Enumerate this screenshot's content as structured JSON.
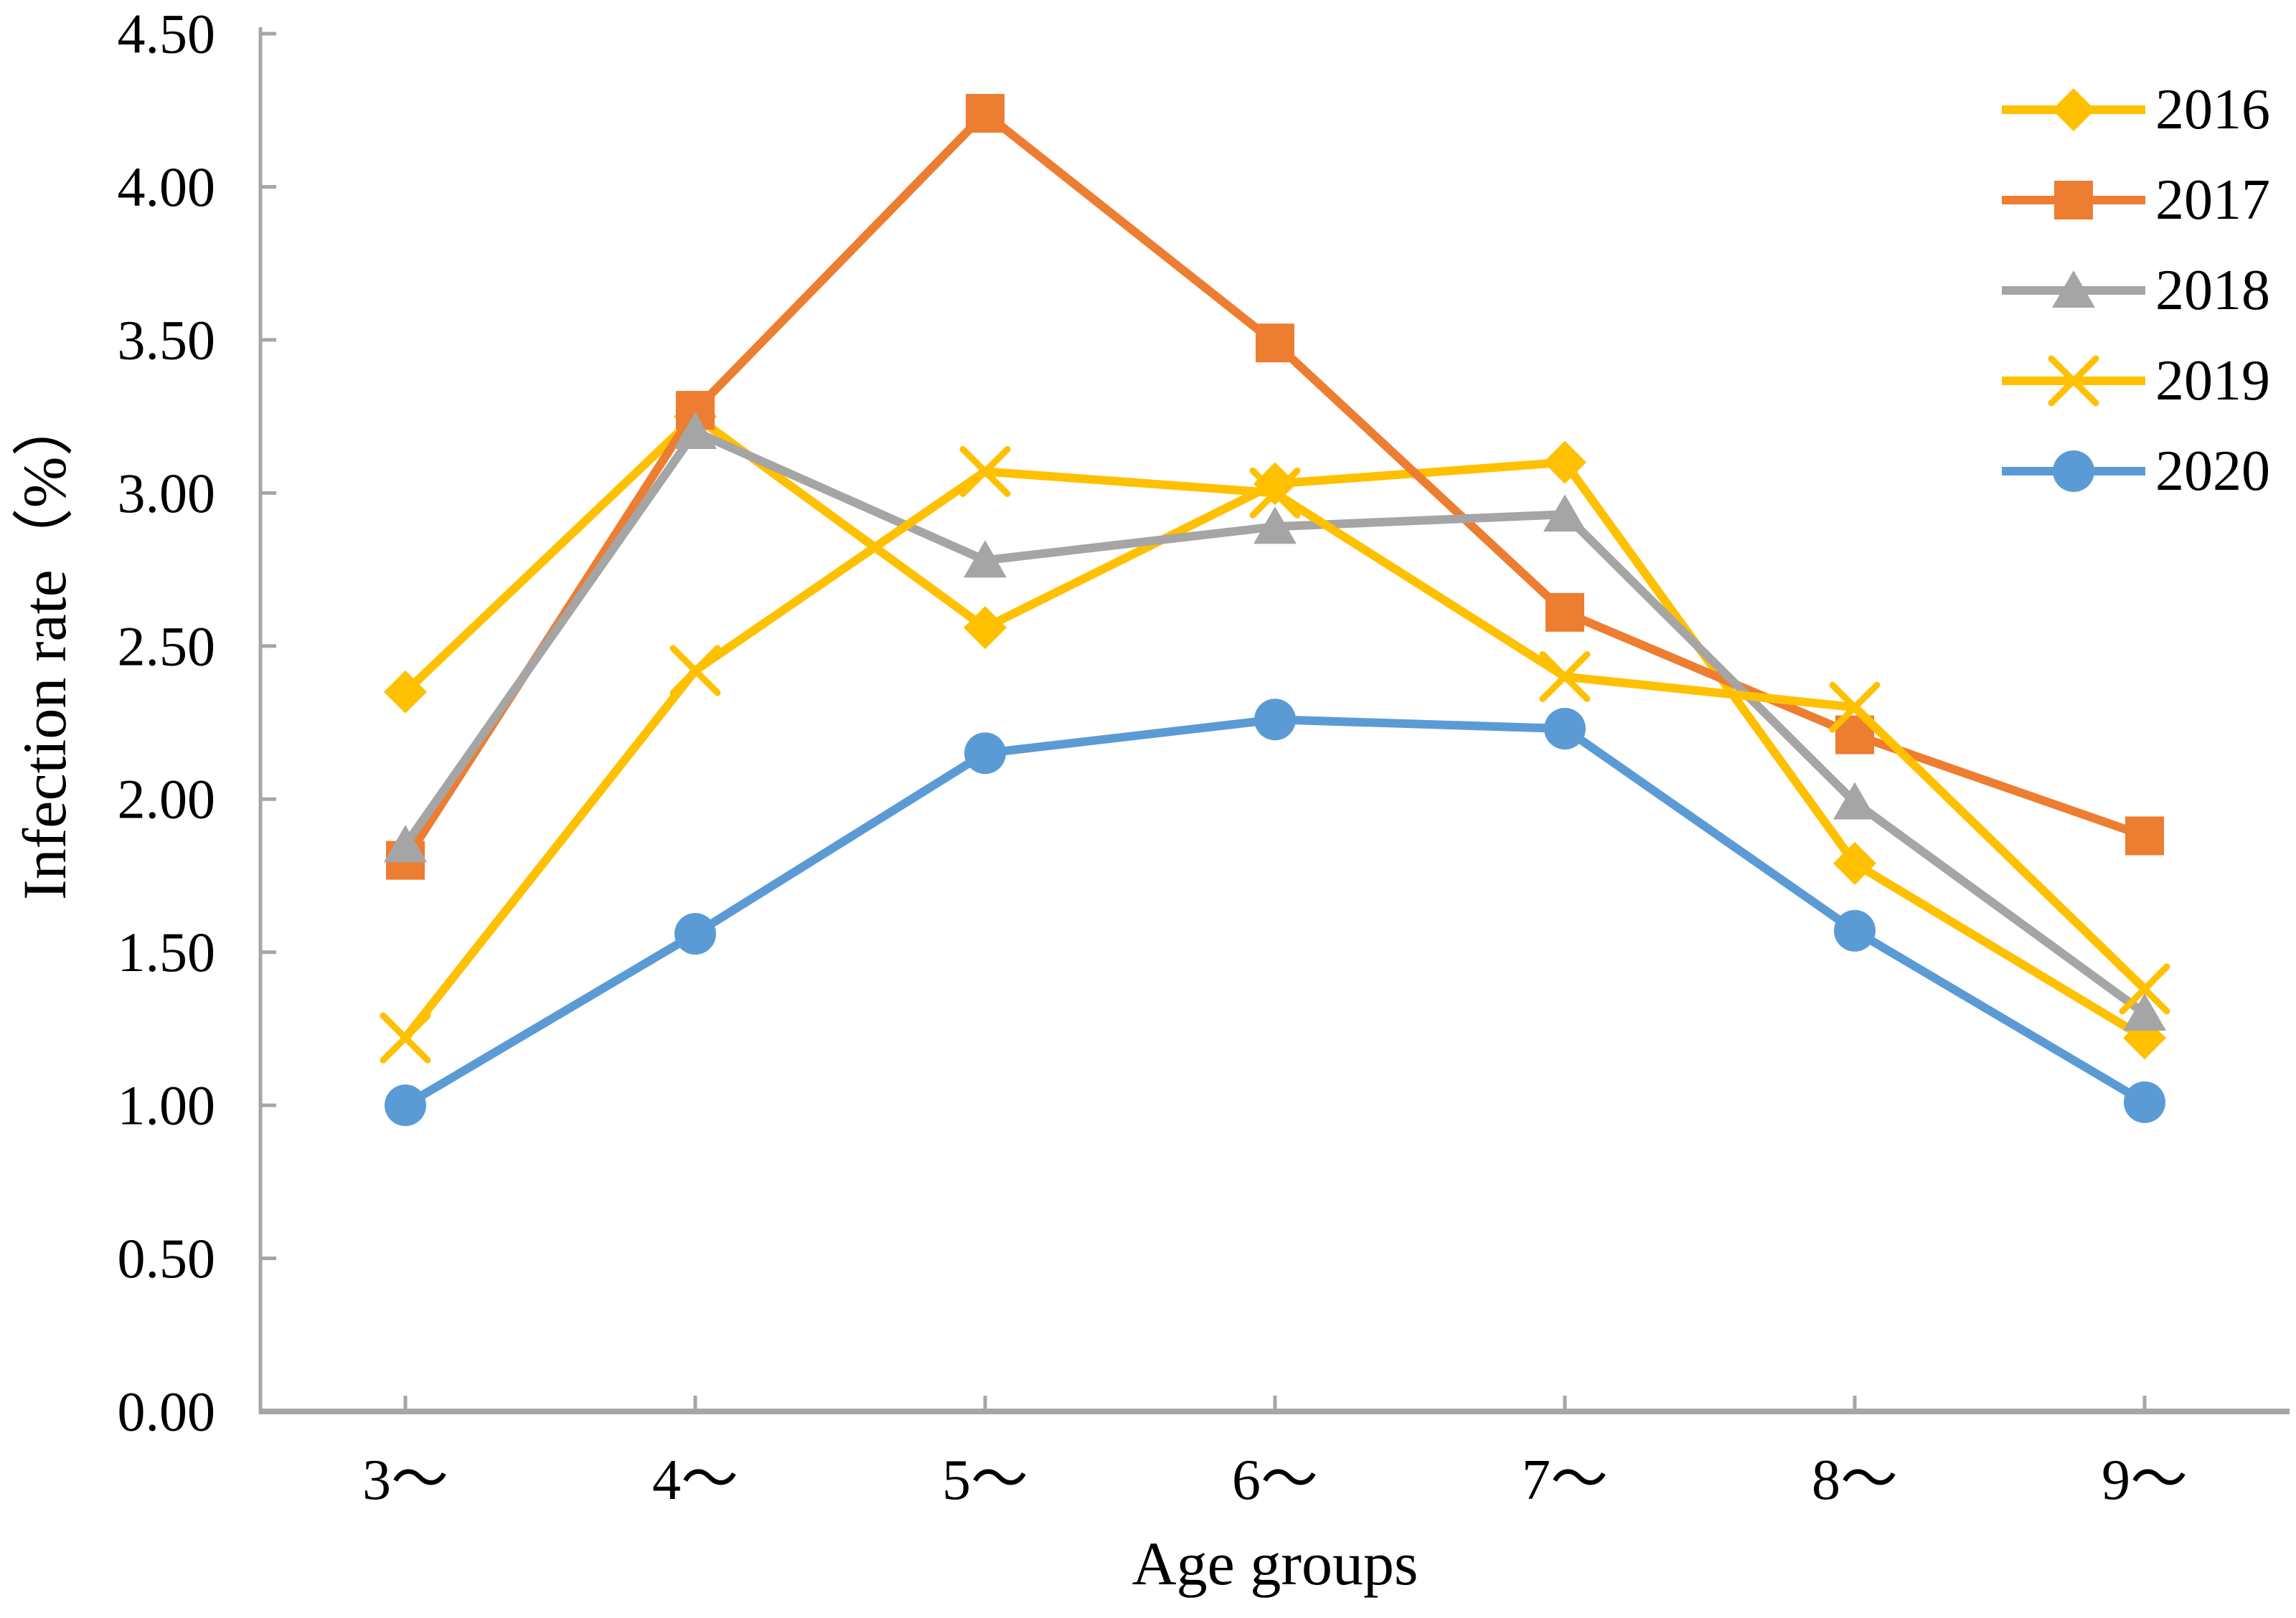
{
  "chart_data": {
    "type": "line",
    "title": "",
    "xlabel": "Age groups",
    "ylabel": "Infection rate（%）",
    "categories": [
      "3～",
      "4～",
      "5～",
      "6～",
      "7～",
      "8～",
      "9～"
    ],
    "y_axis": {
      "min": 0,
      "max": 4.5,
      "step": 0.5,
      "tick_labels": [
        "0.00",
        "0.50",
        "1.00",
        "1.50",
        "2.00",
        "2.50",
        "3.00",
        "3.50",
        "4.00",
        "4.50"
      ]
    },
    "grid": false,
    "legend_position": "top-right",
    "axis_color": "#A6A6A6",
    "text_color": "#000000",
    "series": [
      {
        "name": "2016",
        "color": "#FFC000",
        "marker": "diamond",
        "values": [
          2.35,
          3.25,
          2.56,
          3.03,
          3.1,
          1.79,
          1.22
        ]
      },
      {
        "name": "2017",
        "color": "#ED7D31",
        "marker": "square",
        "values": [
          1.8,
          3.27,
          4.24,
          3.49,
          2.61,
          2.21,
          1.88
        ]
      },
      {
        "name": "2018",
        "color": "#A5A5A5",
        "marker": "triangle",
        "values": [
          1.85,
          3.2,
          2.78,
          2.89,
          2.93,
          1.99,
          1.3
        ]
      },
      {
        "name": "2019",
        "color": "#FFC000",
        "marker": "x",
        "values": [
          1.22,
          2.42,
          3.07,
          3.0,
          2.4,
          2.3,
          1.38
        ]
      },
      {
        "name": "2020",
        "color": "#5B9BD5",
        "marker": "circle",
        "values": [
          1.0,
          1.56,
          2.15,
          2.26,
          2.23,
          1.57,
          1.01
        ]
      }
    ]
  }
}
